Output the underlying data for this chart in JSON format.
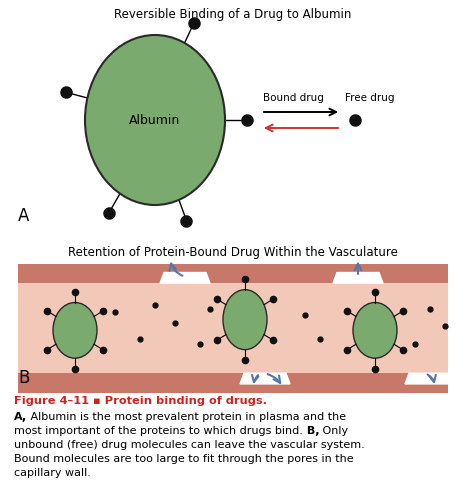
{
  "title_A": "Reversible Binding of a Drug to Albumin",
  "title_B": "Retention of Protein-Bound Drug Within the Vasculature",
  "label_A": "A",
  "label_B": "B",
  "albumin_label": "Albumin",
  "bound_drug_label": "Bound drug",
  "free_drug_label": "Free drug",
  "albumin_color": "#7aaa6e",
  "albumin_edge_color": "#2a2a2a",
  "drug_dot_color": "#111111",
  "vessel_wall_color": "#c87868",
  "vessel_wall_dark": "#b06858",
  "vessel_interior_color": "#f2c8b8",
  "arrow_right_color": "#cc3333",
  "arrow_left_color": "#cc3333",
  "blue_arrow_color": "#5577aa",
  "figure_label_color": "#cc2222",
  "bg_color": "#ffffff",
  "caption_line1": "Figure 4–11 ▪ Protein binding of drugs.",
  "caption_line2a_bold": "A,",
  "caption_line2a": " Albumin is the most prevalent protein in plasma and the",
  "caption_line3a": "most important of the proteins to which drugs bind.",
  "caption_line3b_bold": " B,",
  "caption_line3b": " Only",
  "caption_line4": "unbound (free) drug molecules can leave the vascular system.",
  "caption_line5": "Bound molecules are too large to fit through the pores in the",
  "caption_line6": "capillary wall."
}
